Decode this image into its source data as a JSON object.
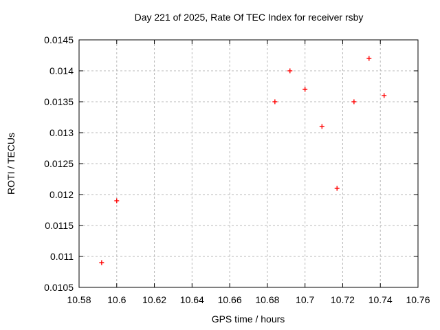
{
  "chart_data": {
    "type": "scatter",
    "title": "Day 221 of 2025, Rate Of TEC Index for receiver rsby",
    "xlabel": "GPS time / hours",
    "ylabel": "ROTI / TECUs",
    "xlim": [
      10.58,
      10.76
    ],
    "ylim": [
      0.0105,
      0.0145
    ],
    "xticks": [
      "10.58",
      "10.6",
      "10.62",
      "10.64",
      "10.66",
      "10.68",
      "10.7",
      "10.72",
      "10.74",
      "10.76"
    ],
    "yticks": [
      "0.0105",
      "0.011",
      "0.0115",
      "0.012",
      "0.0125",
      "0.013",
      "0.0135",
      "0.014",
      "0.0145"
    ],
    "grid": true,
    "legend": "none",
    "marker": "plus",
    "marker_color": "#ff0000",
    "grid_color": "#b8b8b8",
    "frame_color": "#000000",
    "series": [
      {
        "name": "ROTI",
        "points": [
          [
            10.592,
            0.0109
          ],
          [
            10.6,
            0.0119
          ],
          [
            10.684,
            0.0135
          ],
          [
            10.692,
            0.014
          ],
          [
            10.7,
            0.0137
          ],
          [
            10.709,
            0.0131
          ],
          [
            10.717,
            0.0121
          ],
          [
            10.726,
            0.0135
          ],
          [
            10.734,
            0.0142
          ],
          [
            10.742,
            0.0136
          ]
        ]
      }
    ]
  }
}
